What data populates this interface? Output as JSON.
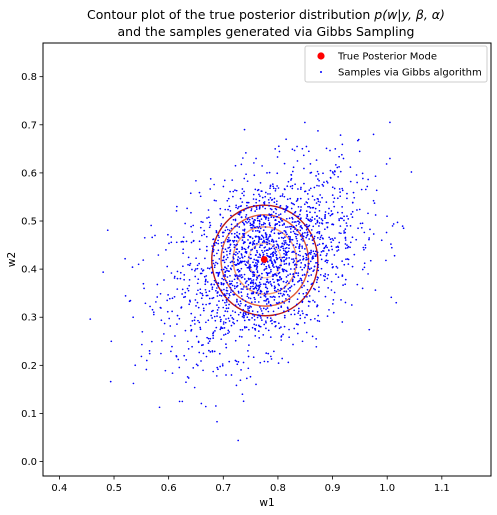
{
  "chart_data": {
    "type": "scatter",
    "title": {
      "line1_prefix": "Contour plot of the true posterior distribution ",
      "line1_math": "p(w|y, β, α)",
      "line2": "and the samples generated via Gibbs Sampling"
    },
    "xlabel": "w1",
    "ylabel": "w2",
    "xlim": [
      0.37,
      1.19
    ],
    "ylim": [
      -0.03,
      0.87
    ],
    "xticks": [
      "0.4",
      "0.5",
      "0.6",
      "0.7",
      "0.8",
      "0.9",
      "1.0",
      "1.1"
    ],
    "yticks": [
      "0.0",
      "0.1",
      "0.2",
      "0.3",
      "0.4",
      "0.5",
      "0.6",
      "0.7",
      "0.8"
    ],
    "grid": false,
    "legend_placement": "top-right",
    "legend": [
      {
        "label": "True Posterior Mode",
        "marker": "circle",
        "color": "#ff0000"
      },
      {
        "label": "Samples via Gibbs algorithm",
        "marker": "dot",
        "color": "#0000ff"
      }
    ],
    "mode": {
      "x": 0.775,
      "y": 0.42
    },
    "contours": [
      {
        "level": 1,
        "cx": 0.776,
        "cy": 0.418,
        "rx": 0.097,
        "ry": 0.115,
        "color": "#b81818"
      },
      {
        "level": 2,
        "cx": 0.776,
        "cy": 0.418,
        "rx": 0.08,
        "ry": 0.095,
        "color": "#e05a3a"
      },
      {
        "level": 3,
        "cx": 0.776,
        "cy": 0.418,
        "rx": 0.058,
        "ry": 0.07,
        "color": "#f59a6e"
      },
      {
        "level": 4,
        "cx": 0.776,
        "cy": 0.418,
        "rx": 0.03,
        "ry": 0.036,
        "color": "#fbc7a4"
      }
    ],
    "samples": {
      "count": 2000,
      "mean": [
        0.776,
        0.418
      ],
      "std": [
        0.085,
        0.095
      ],
      "correlation": 0.38,
      "color": "#0000ff",
      "points": [
        [
          0.495,
          0.25
        ],
        [
          0.535,
          0.3
        ],
        [
          0.545,
          0.41
        ],
        [
          0.555,
          0.36
        ],
        [
          0.56,
          0.21
        ],
        [
          0.565,
          0.23
        ],
        [
          0.575,
          0.47
        ],
        [
          0.595,
          0.44
        ],
        [
          0.615,
          0.53
        ],
        [
          0.62,
          0.125
        ],
        [
          0.625,
          0.125
        ],
        [
          0.635,
          0.25
        ],
        [
          0.655,
          0.32
        ],
        [
          0.665,
          0.48
        ],
        [
          0.68,
          0.23
        ],
        [
          0.705,
          0.18
        ],
        [
          0.715,
          0.18
        ],
        [
          0.73,
          0.26
        ],
        [
          0.735,
          0.14
        ],
        [
          0.745,
          0.23
        ],
        [
          0.76,
          0.63
        ],
        [
          0.78,
          0.6
        ],
        [
          0.795,
          0.65
        ],
        [
          0.815,
          0.67
        ],
        [
          0.835,
          0.655
        ],
        [
          0.845,
          0.25
        ],
        [
          0.87,
          0.255
        ],
        [
          0.905,
          0.65
        ],
        [
          0.92,
          0.63
        ],
        [
          0.945,
          0.58
        ],
        [
          0.955,
          0.36
        ],
        [
          0.96,
          0.45
        ],
        [
          0.965,
          0.39
        ],
        [
          0.975,
          0.68
        ],
        [
          0.99,
          0.46
        ],
        [
          1.005,
          0.705
        ],
        [
          1.005,
          0.63
        ],
        [
          1.03,
          0.485
        ]
      ]
    }
  }
}
